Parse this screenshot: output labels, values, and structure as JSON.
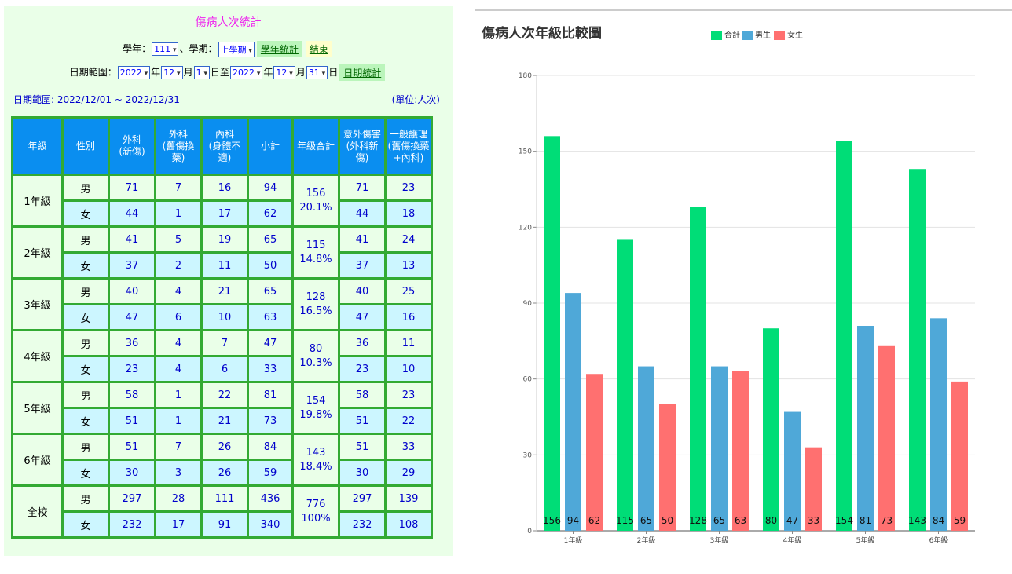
{
  "table_panel": {
    "title": "傷病人次統計",
    "year_label": "學年：",
    "year_value": "111",
    "term_sep": "、學期：",
    "term_value": "上學期",
    "year_stats_button": "學年統計",
    "end_button": "結束",
    "date_label": "日期範圍：",
    "start_year": "2022",
    "nian": "年",
    "start_month": "12",
    "yue": "月",
    "start_day": "1",
    "ri_zhi": "日至",
    "end_year": "2022",
    "end_month": "12",
    "end_day": "31",
    "ri": "日",
    "date_stats_button": "日期統計",
    "range_text": "日期範圍: 2022/12/01 ~ 2022/12/31",
    "unit_text": "(單位:人次)",
    "headers": [
      "年級",
      "性別",
      "外科\n(新傷)",
      "外科\n(舊傷換藥)",
      "內科\n(身體不適)",
      "小計",
      "年級合計",
      "意外傷害\n(外科新傷)",
      "一般護理\n(舊傷換藥\n+內科)"
    ],
    "groups": [
      {
        "grade": "1年級",
        "total": "156",
        "pct": "20.1%",
        "rows": [
          [
            "男",
            "71",
            "7",
            "16",
            "94",
            "71",
            "23"
          ],
          [
            "女",
            "44",
            "1",
            "17",
            "62",
            "44",
            "18"
          ]
        ]
      },
      {
        "grade": "2年級",
        "total": "115",
        "pct": "14.8%",
        "rows": [
          [
            "男",
            "41",
            "5",
            "19",
            "65",
            "41",
            "24"
          ],
          [
            "女",
            "37",
            "2",
            "11",
            "50",
            "37",
            "13"
          ]
        ]
      },
      {
        "grade": "3年級",
        "total": "128",
        "pct": "16.5%",
        "rows": [
          [
            "男",
            "40",
            "4",
            "21",
            "65",
            "40",
            "25"
          ],
          [
            "女",
            "47",
            "6",
            "10",
            "63",
            "47",
            "16"
          ]
        ]
      },
      {
        "grade": "4年級",
        "total": "80",
        "pct": "10.3%",
        "rows": [
          [
            "男",
            "36",
            "4",
            "7",
            "47",
            "36",
            "11"
          ],
          [
            "女",
            "23",
            "4",
            "6",
            "33",
            "23",
            "10"
          ]
        ]
      },
      {
        "grade": "5年級",
        "total": "154",
        "pct": "19.8%",
        "rows": [
          [
            "男",
            "58",
            "1",
            "22",
            "81",
            "58",
            "23"
          ],
          [
            "女",
            "51",
            "1",
            "21",
            "73",
            "51",
            "22"
          ]
        ]
      },
      {
        "grade": "6年級",
        "total": "143",
        "pct": "18.4%",
        "rows": [
          [
            "男",
            "51",
            "7",
            "26",
            "84",
            "51",
            "33"
          ],
          [
            "女",
            "30",
            "3",
            "26",
            "59",
            "30",
            "29"
          ]
        ]
      },
      {
        "grade": "全校",
        "total": "776",
        "pct": "100%",
        "rows": [
          [
            "男",
            "297",
            "28",
            "111",
            "436",
            "297",
            "139"
          ],
          [
            "女",
            "232",
            "17",
            "91",
            "340",
            "232",
            "108"
          ]
        ]
      }
    ]
  },
  "chart_data": {
    "type": "bar",
    "title": "傷病人次年級比較圖",
    "categories": [
      "1年級",
      "2年級",
      "3年級",
      "4年級",
      "5年級",
      "6年級"
    ],
    "series": [
      {
        "name": "合計",
        "values": [
          156,
          115,
          128,
          80,
          154,
          143
        ],
        "color": "#00dd77"
      },
      {
        "name": "男生",
        "values": [
          94,
          65,
          65,
          47,
          81,
          84
        ],
        "color": "#4fa8d8"
      },
      {
        "name": "女生",
        "values": [
          62,
          50,
          63,
          33,
          73,
          59
        ],
        "color": "#ff7070"
      }
    ],
    "ylim": [
      0,
      180
    ],
    "yticks": [
      "0",
      "30",
      "60",
      "90",
      "120",
      "150",
      "180"
    ],
    "grid": true,
    "legend_position": "top"
  }
}
